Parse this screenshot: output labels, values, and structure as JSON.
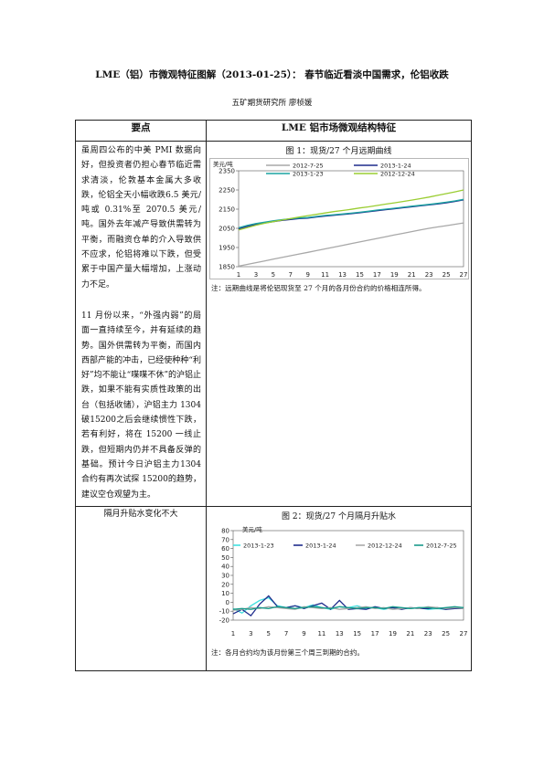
{
  "header": {
    "title": "LME（铝）市微观特征图解（2013-01-25）： 春节临近看淡中国需求，伦铝收跌",
    "subtitle": "五矿期货研究所 廖桢媛"
  },
  "table": {
    "col1_header": "要点",
    "col2_header": "LME 铝市场微观结构特征",
    "para1": "虽周四公布的中美 PMI 数据向好，但投资者仍担心春节临近需求清淡，伦敦基本金属大多收跌，伦铝全天小幅收跌6.5 美元/吨或 0.31%至 2070.5 美元/吨。国外去年减产导致供需转为平衡，而融资仓单的介入导致供不应求，伦铝将难以下跌，但受累于中国产量大幅增加，上涨动力不足。",
    "para2": "11 月份以来，“外强内弱”的局面一直持续至今，并有延续的趋势。国外供需转为平衡，而国内西部产能的冲击，已经使种种“利好”均不能让“喋喋不休”的沪铝止跌，如果不能有实质性政策的出台（包括收储），沪铝主力 1304 破15200之后会继续惯性下跌，若有利好，将在 15200 一线止跌，但短期内仍并不具备反弹的基础。预计今日沪铝主力1304 合约有再次试探 15200的趋势，建议空仓观望为主。",
    "row2_label": "隔月升贴水变化不大",
    "fig1_title": "图 1：现货/27 个月远期曲线",
    "fig1_note": "注：远期曲线是将伦铝现货至 27 个月的各月份合约的价格相连所得。",
    "fig2_title": "图 2：现货/27 个月隔月升贴水",
    "fig2_note": "注：各月合约均为该月份第三个周三到期的合约。"
  },
  "chart_data": [
    {
      "type": "line",
      "ylabel": "美元/吨",
      "ylim": [
        1850,
        2350
      ],
      "yticks": [
        1850,
        1950,
        2050,
        2150,
        2250,
        2350
      ],
      "xticks": [
        1,
        3,
        5,
        7,
        9,
        11,
        13,
        15,
        17,
        19,
        21,
        23,
        25,
        27
      ],
      "legend_placement": "top",
      "series": [
        {
          "name": "2012-7-25",
          "color": "#a8a8a8",
          "values": [
            1853,
            1862,
            1871,
            1880,
            1889,
            1898,
            1907,
            1916,
            1925,
            1934,
            1943,
            1952,
            1961,
            1970,
            1979,
            1988,
            1997,
            2006,
            2015,
            2024,
            2033,
            2042,
            2050,
            2057,
            2064,
            2071,
            2078
          ]
        },
        {
          "name": "2013-1-24",
          "color": "#1f2c8c",
          "values": [
            2047,
            2060,
            2070,
            2078,
            2085,
            2091,
            2096,
            2101,
            2103,
            2109,
            2114,
            2118,
            2122,
            2126,
            2131,
            2136,
            2142,
            2147,
            2152,
            2157,
            2162,
            2167,
            2172,
            2177,
            2183,
            2190,
            2198
          ]
        },
        {
          "name": "2013-1-23",
          "color": "#1aa3a0",
          "values": [
            2053,
            2065,
            2075,
            2082,
            2089,
            2095,
            2100,
            2104,
            2106,
            2112,
            2117,
            2121,
            2125,
            2129,
            2134,
            2139,
            2145,
            2150,
            2155,
            2160,
            2165,
            2170,
            2175,
            2180,
            2186,
            2193,
            2201
          ]
        },
        {
          "name": "2012-12-24",
          "color": "#9acd32",
          "values": [
            2042,
            2054,
            2066,
            2076,
            2085,
            2093,
            2101,
            2109,
            2116,
            2123,
            2130,
            2137,
            2143,
            2149,
            2156,
            2162,
            2169,
            2176,
            2183,
            2190,
            2197,
            2205,
            2213,
            2222,
            2231,
            2240,
            2250
          ]
        }
      ]
    },
    {
      "type": "line",
      "ylabel": "美元/吨",
      "ylim": [
        -20,
        80
      ],
      "yticks": [
        -20,
        -10,
        0,
        10,
        20,
        30,
        40,
        50,
        60,
        70,
        80
      ],
      "xticks": [
        1,
        3,
        5,
        7,
        9,
        11,
        13,
        15,
        17,
        19,
        21,
        23,
        25,
        27
      ],
      "legend_placement": "top",
      "series": [
        {
          "name": "2013-1-23",
          "color": "#40e0e0",
          "values": [
            -7,
            -12,
            -4,
            2,
            5,
            -4,
            -6,
            -4,
            -6,
            -3,
            -6,
            -8,
            -5,
            -6,
            -4,
            -7,
            -6,
            -8,
            -6,
            -7,
            -7,
            -6,
            -8,
            -7,
            -8,
            -6,
            -7
          ]
        },
        {
          "name": "2013-1-24",
          "color": "#1f2c8c",
          "values": [
            -13,
            -8,
            -15,
            -2,
            7,
            -5,
            -6,
            -4,
            -7,
            -4,
            -1,
            -8,
            2,
            -8,
            -7,
            -8,
            -5,
            -7,
            -6,
            -8,
            -6,
            -7,
            -7,
            -6,
            -8,
            -7,
            -7
          ]
        },
        {
          "name": "2012-12-24",
          "color": "#a8a8a8",
          "values": [
            -9,
            -8,
            -6,
            -7,
            -5,
            -6,
            -7,
            -8,
            -5,
            -6,
            -7,
            -6,
            -8,
            -7,
            -6,
            -5,
            -7,
            -6,
            -8,
            -7,
            -6,
            -7,
            -5,
            -6,
            -7,
            -6,
            -7
          ]
        },
        {
          "name": "2012-7-25",
          "color": "#1a9a8a",
          "values": [
            -8,
            -7,
            -8,
            -6,
            -7,
            -5,
            -6,
            -7,
            -6,
            -5,
            -6,
            -7,
            -5,
            -6,
            -7,
            -6,
            -6,
            -7,
            -5,
            -6,
            -7,
            -6,
            -6,
            -7,
            -6,
            -5,
            -6
          ]
        }
      ]
    }
  ]
}
